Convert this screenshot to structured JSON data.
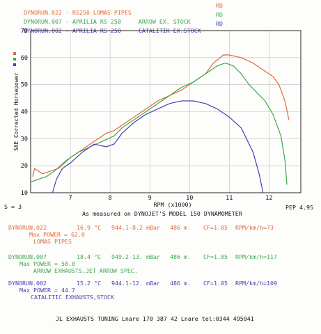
{
  "header_lines": [
    {
      "run": "DYNORUN.022",
      "bike": "RS250 LOMAS PIPES",
      "tag": "RD",
      "color": "#e06a3a"
    },
    {
      "run": "DYNORUN.007",
      "bike": "APRILIA RS 250     ARROW EX. STOCK",
      "tag": "RD",
      "color": "#3aa84e"
    },
    {
      "run": "DYNORUN.002",
      "bike": "APRILIA RS 250     CATALITIK EX.STOCK",
      "tag": "RD",
      "color": "#4a3fb8"
    }
  ],
  "chart_data": {
    "type": "line",
    "title": "",
    "xlabel": "RPM (x1000)",
    "ylabel": "SAE Corrected Horsepower",
    "xlim": [
      6,
      12.8
    ],
    "ylim": [
      10,
      70
    ],
    "x_ticks": [
      "7",
      "8",
      "9",
      "10",
      "11",
      "12"
    ],
    "y_ticks": [
      "10",
      "20",
      "30",
      "40",
      "50",
      "60",
      "70"
    ],
    "grid": true,
    "series": [
      {
        "name": "DYNORUN.022",
        "color": "#e06a3a",
        "points": [
          [
            6.05,
            16
          ],
          [
            6.1,
            19
          ],
          [
            6.2,
            18
          ],
          [
            6.3,
            17
          ],
          [
            6.5,
            18
          ],
          [
            6.7,
            19
          ],
          [
            7.0,
            23
          ],
          [
            7.3,
            26
          ],
          [
            7.6,
            29
          ],
          [
            7.9,
            32
          ],
          [
            8.1,
            33
          ],
          [
            8.3,
            35
          ],
          [
            8.6,
            38
          ],
          [
            8.9,
            41
          ],
          [
            9.2,
            44
          ],
          [
            9.5,
            46
          ],
          [
            9.8,
            48
          ],
          [
            10.1,
            51
          ],
          [
            10.4,
            54
          ],
          [
            10.6,
            58
          ],
          [
            10.85,
            61
          ],
          [
            11.0,
            61
          ],
          [
            11.3,
            60
          ],
          [
            11.6,
            58
          ],
          [
            11.9,
            55
          ],
          [
            12.1,
            53
          ],
          [
            12.25,
            50
          ],
          [
            12.4,
            44
          ],
          [
            12.5,
            37
          ]
        ]
      },
      {
        "name": "DYNORUN.007",
        "color": "#3aa84e",
        "points": [
          [
            6.0,
            14
          ],
          [
            6.4,
            16
          ],
          [
            6.6,
            18
          ],
          [
            6.9,
            22
          ],
          [
            7.2,
            25
          ],
          [
            7.5,
            27
          ],
          [
            7.8,
            29
          ],
          [
            8.1,
            31
          ],
          [
            8.3,
            34
          ],
          [
            8.6,
            37
          ],
          [
            8.9,
            40
          ],
          [
            9.2,
            43
          ],
          [
            9.5,
            46
          ],
          [
            9.8,
            49
          ],
          [
            10.1,
            51
          ],
          [
            10.4,
            54
          ],
          [
            10.7,
            57
          ],
          [
            10.9,
            58
          ],
          [
            11.1,
            57
          ],
          [
            11.3,
            54
          ],
          [
            11.5,
            50
          ],
          [
            11.7,
            47
          ],
          [
            11.9,
            44
          ],
          [
            12.1,
            39
          ],
          [
            12.3,
            31
          ],
          [
            12.4,
            22
          ],
          [
            12.45,
            13
          ]
        ]
      },
      {
        "name": "DYNORUN.002",
        "color": "#4a3fb8",
        "points": [
          [
            6.55,
            10
          ],
          [
            6.65,
            15
          ],
          [
            6.8,
            19
          ],
          [
            7.0,
            21
          ],
          [
            7.3,
            25
          ],
          [
            7.6,
            28
          ],
          [
            7.9,
            27
          ],
          [
            8.1,
            28
          ],
          [
            8.3,
            32
          ],
          [
            8.6,
            36
          ],
          [
            8.9,
            39
          ],
          [
            9.2,
            41
          ],
          [
            9.5,
            43
          ],
          [
            9.8,
            44
          ],
          [
            10.1,
            44
          ],
          [
            10.4,
            43
          ],
          [
            10.7,
            41
          ],
          [
            11.0,
            38
          ],
          [
            11.3,
            34
          ],
          [
            11.6,
            25
          ],
          [
            11.75,
            17
          ],
          [
            11.85,
            10
          ]
        ]
      }
    ]
  },
  "s_label": "S = 3",
  "pep_label": "PEP 4.95",
  "measured_note": "As measured on DYNOJET'S MODEL 150 DYNAMOMETER",
  "runs": [
    {
      "id": "DYNORUN.022",
      "temp": "16.9 °C",
      "pressure": "944.1-8.2 mBar",
      "alt": "486 m.",
      "cf": "CF=1.05",
      "rpm": "RPM/km/h=73",
      "max_power": "Max POWER = 62.0",
      "desc": "LOMAS PIPES",
      "color": "#e06a3a"
    },
    {
      "id": "DYNORUN.007",
      "temp": "18.4 °C",
      "pressure": "949.2-13. mBar",
      "alt": "486 m.",
      "cf": "CF=1.05",
      "rpm": "RPM/km/h=117",
      "max_power": "Max POWER = 58.0",
      "desc": "ARROW EXHAUSTS,JET ARROW SPEC.",
      "color": "#3aa84e"
    },
    {
      "id": "DYNORUN.002",
      "temp": "15.2 °C",
      "pressure": "944.1-12. mBar",
      "alt": "486 m.",
      "cf": "CF=1.05",
      "rpm": "RPM/km/h=109",
      "max_power": "Max POWER = 44.7",
      "desc": "CATALITIC EXHAUSTS,STOCK",
      "color": "#4a3fb8"
    }
  ],
  "footer": "JL EXHAUSTS TUNING Lnare 170 387 42 Lnare tel:0344 495041"
}
